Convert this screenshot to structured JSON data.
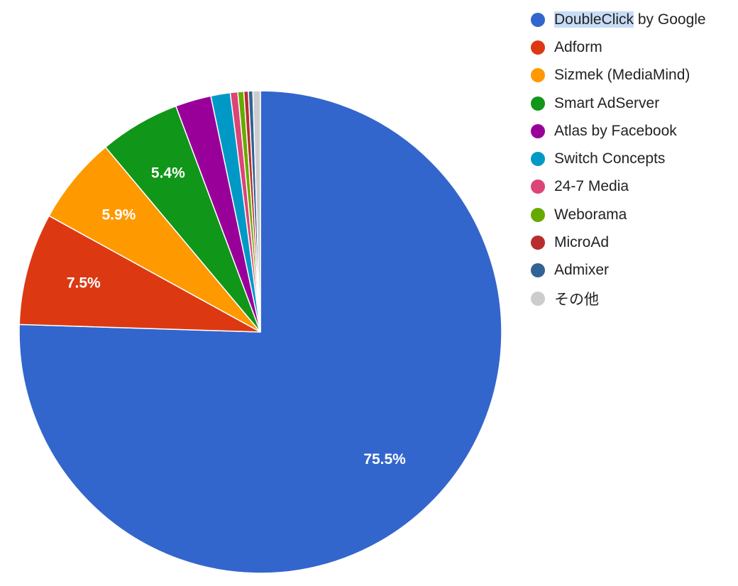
{
  "chart_data": {
    "type": "pie",
    "title": "",
    "series": [
      {
        "name": "DoubleClick by Google",
        "value": 75.5,
        "color": "#3366cc",
        "label": "75.5%"
      },
      {
        "name": "Adform",
        "value": 7.5,
        "color": "#dc3912",
        "label": "7.5%"
      },
      {
        "name": "Sizmek (MediaMind)",
        "value": 5.9,
        "color": "#ff9900",
        "label": "5.9%"
      },
      {
        "name": "Smart AdServer",
        "value": 5.4,
        "color": "#109618",
        "label": "5.4%"
      },
      {
        "name": "Atlas by Facebook",
        "value": 2.4,
        "color": "#990099",
        "label": ""
      },
      {
        "name": "Switch Concepts",
        "value": 1.3,
        "color": "#0099c6",
        "label": ""
      },
      {
        "name": "24-7 Media",
        "value": 0.5,
        "color": "#dd4477",
        "label": ""
      },
      {
        "name": "Weborama",
        "value": 0.4,
        "color": "#66aa00",
        "label": ""
      },
      {
        "name": "MicroAd",
        "value": 0.3,
        "color": "#b82e2e",
        "label": ""
      },
      {
        "name": "Admixer",
        "value": 0.3,
        "color": "#316395",
        "label": ""
      },
      {
        "name": "その他",
        "value": 0.5,
        "color": "#cccccc",
        "label": ""
      }
    ],
    "legend_position": "right",
    "start_angle": "top",
    "direction": "clockwise"
  },
  "legend": {
    "highlight_prefix": "DoubleClick",
    "highlight_rest": " by Google"
  }
}
